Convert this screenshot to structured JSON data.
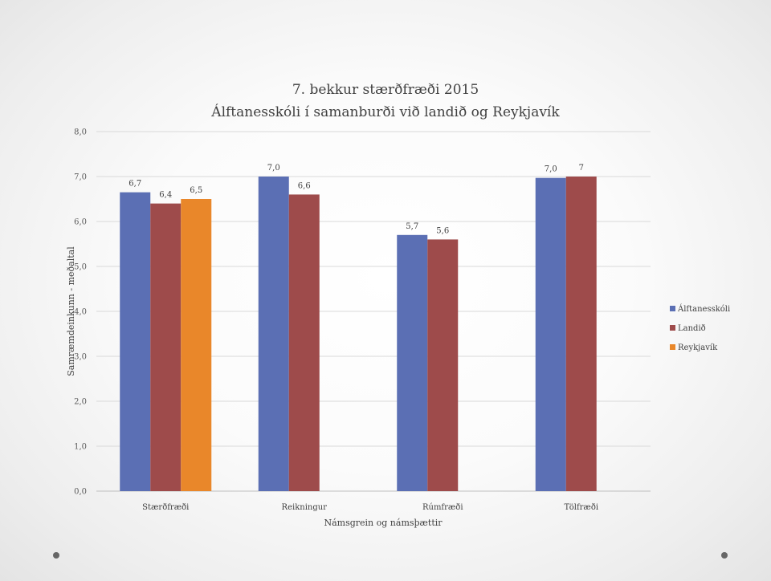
{
  "chart_data": {
    "type": "bar",
    "title": [
      "7. bekkur stærðfræði 2015",
      "Álftanesskóli í samanburði við landið og Reykjavík"
    ],
    "xlabel": "Námsgrein og námsþættir",
    "ylabel": "Samræmdeinkunn - meðaltal",
    "ylim": [
      0,
      8
    ],
    "yticks": [
      "0,0",
      "1,0",
      "2,0",
      "3,0",
      "4,0",
      "5,0",
      "6,0",
      "7,0",
      "8,0"
    ],
    "grid": true,
    "legend_position": "right",
    "categories": [
      "Stærðfræði",
      "Reikningur",
      "Rúmfræði",
      "Tölfræði"
    ],
    "series": [
      {
        "name": "Álftanesskóli",
        "color": "#5b6fb4",
        "values": [
          6.65,
          7.0,
          5.7,
          6.97
        ],
        "labels": [
          "6,7",
          "7,0",
          "5,7",
          "7,0"
        ]
      },
      {
        "name": "Landið",
        "color": "#9e4b4b",
        "values": [
          6.4,
          6.6,
          5.6,
          7.0
        ],
        "labels": [
          "6,4",
          "6,6",
          "5,6",
          "7"
        ]
      },
      {
        "name": "Reykjavík",
        "color": "#e9872a",
        "values": [
          6.5,
          null,
          null,
          null
        ],
        "labels": [
          "6,5",
          null,
          null,
          null
        ]
      }
    ]
  }
}
